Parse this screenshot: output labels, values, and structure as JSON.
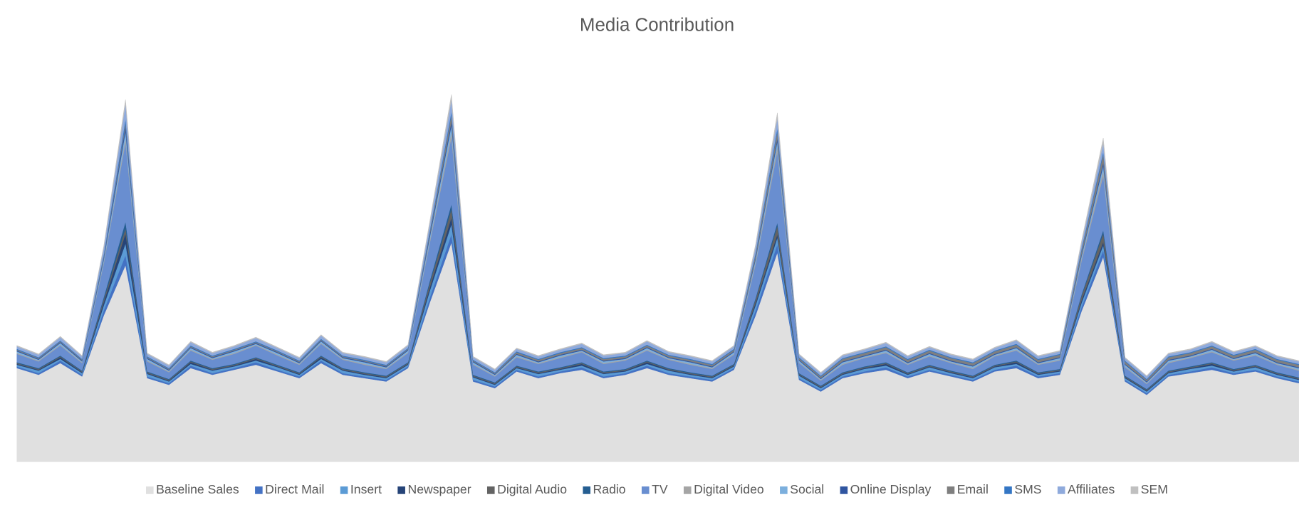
{
  "chart_data": {
    "type": "stacked_area",
    "title": "Media Contribution",
    "ylim": [
      0,
      440
    ],
    "legend": "bottom",
    "series": [
      {
        "name": "Baseline Sales",
        "color": "#e0e0e0",
        "values": [
          112,
          104,
          118,
          102,
          175,
          235,
          100,
          92,
          112,
          104,
          110,
          116,
          108,
          100,
          118,
          104,
          100,
          96,
          112,
          190,
          262,
          96,
          88,
          108,
          100,
          106,
          110,
          100,
          104,
          112,
          104,
          100,
          96,
          110,
          175,
          250,
          98,
          84,
          100,
          106,
          110,
          100,
          108,
          102,
          96,
          108,
          112,
          100,
          104,
          180,
          245,
          96,
          80,
          102,
          106,
          110,
          104,
          108,
          100,
          94
        ]
      },
      {
        "name": "Direct Mail",
        "color": "#4472c4",
        "values": [
          2,
          2,
          3,
          2,
          6,
          12,
          2,
          2,
          3,
          2,
          2,
          3,
          2,
          2,
          3,
          2,
          2,
          2,
          2,
          6,
          10,
          2,
          2,
          2,
          2,
          2,
          3,
          2,
          2,
          3,
          2,
          2,
          2,
          2,
          6,
          10,
          2,
          2,
          2,
          2,
          3,
          2,
          2,
          2,
          2,
          2,
          3,
          2,
          2,
          5,
          8,
          2,
          2,
          2,
          2,
          3,
          2,
          2,
          2,
          2
        ]
      },
      {
        "name": "Insert",
        "color": "#5b9bd5",
        "values": [
          2,
          3,
          2,
          2,
          6,
          14,
          3,
          2,
          2,
          3,
          2,
          2,
          3,
          2,
          2,
          3,
          2,
          2,
          2,
          8,
          12,
          3,
          2,
          2,
          3,
          2,
          2,
          3,
          2,
          2,
          3,
          2,
          2,
          2,
          6,
          8,
          3,
          2,
          2,
          3,
          2,
          2,
          3,
          2,
          2,
          3,
          2,
          2,
          2,
          5,
          6,
          2,
          2,
          2,
          3,
          2,
          2,
          3,
          2,
          2
        ]
      },
      {
        "name": "Newspaper",
        "color": "#264478",
        "values": [
          1,
          1,
          2,
          1,
          4,
          12,
          1,
          1,
          2,
          1,
          1,
          2,
          1,
          1,
          2,
          1,
          1,
          1,
          1,
          4,
          8,
          1,
          1,
          1,
          1,
          1,
          2,
          1,
          1,
          2,
          1,
          1,
          1,
          1,
          3,
          4,
          1,
          1,
          1,
          1,
          2,
          1,
          1,
          1,
          1,
          1,
          2,
          1,
          1,
          3,
          4,
          1,
          1,
          1,
          1,
          2,
          1,
          1,
          1,
          1
        ]
      },
      {
        "name": "Digital Audio",
        "color": "#636363",
        "values": [
          1,
          1,
          1,
          1,
          3,
          6,
          1,
          1,
          1,
          1,
          1,
          1,
          1,
          1,
          1,
          1,
          1,
          1,
          1,
          5,
          10,
          1,
          1,
          1,
          1,
          1,
          1,
          1,
          1,
          1,
          1,
          1,
          1,
          1,
          4,
          10,
          1,
          1,
          1,
          1,
          1,
          1,
          1,
          1,
          1,
          1,
          1,
          1,
          1,
          5,
          10,
          1,
          1,
          1,
          1,
          1,
          1,
          1,
          1,
          1
        ]
      },
      {
        "name": "Radio",
        "color": "#255e91",
        "values": [
          1,
          1,
          1,
          1,
          3,
          8,
          1,
          1,
          1,
          1,
          1,
          1,
          1,
          1,
          1,
          1,
          1,
          1,
          1,
          3,
          6,
          1,
          1,
          1,
          1,
          1,
          1,
          1,
          1,
          1,
          1,
          1,
          1,
          1,
          2,
          4,
          1,
          1,
          1,
          1,
          1,
          1,
          1,
          1,
          1,
          1,
          1,
          1,
          1,
          2,
          4,
          1,
          1,
          1,
          1,
          1,
          1,
          1,
          1,
          1
        ]
      },
      {
        "name": "TV",
        "color": "#698ed0",
        "values": [
          10,
          8,
          12,
          9,
          40,
          95,
          12,
          8,
          12,
          10,
          12,
          14,
          11,
          9,
          14,
          10,
          9,
          8,
          11,
          45,
          80,
          12,
          7,
          10,
          9,
          11,
          12,
          9,
          10,
          12,
          10,
          9,
          8,
          11,
          40,
          85,
          12,
          6,
          9,
          10,
          11,
          9,
          10,
          9,
          8,
          10,
          12,
          9,
          10,
          40,
          65,
          10,
          6,
          9,
          10,
          12,
          10,
          11,
          9,
          8
        ]
      },
      {
        "name": "Digital Video",
        "color": "#a5a5a5",
        "values": [
          1,
          1,
          1,
          1,
          2,
          5,
          1,
          1,
          1,
          1,
          1,
          1,
          1,
          1,
          1,
          1,
          1,
          1,
          1,
          3,
          6,
          1,
          1,
          1,
          1,
          1,
          1,
          1,
          1,
          1,
          1,
          1,
          1,
          1,
          3,
          6,
          1,
          1,
          1,
          1,
          1,
          1,
          1,
          1,
          1,
          1,
          1,
          1,
          1,
          3,
          6,
          1,
          1,
          1,
          1,
          1,
          1,
          1,
          1,
          1
        ]
      },
      {
        "name": "Social",
        "color": "#7cafdd",
        "values": [
          2,
          1,
          2,
          1,
          3,
          8,
          2,
          1,
          2,
          1,
          2,
          1,
          2,
          1,
          2,
          1,
          2,
          1,
          2,
          4,
          8,
          2,
          1,
          2,
          1,
          2,
          1,
          2,
          1,
          2,
          1,
          2,
          1,
          2,
          3,
          6,
          2,
          1,
          2,
          1,
          2,
          1,
          2,
          1,
          2,
          1,
          2,
          1,
          2,
          3,
          6,
          2,
          1,
          2,
          1,
          2,
          1,
          2,
          1,
          2
        ]
      },
      {
        "name": "Online Display",
        "color": "#2f55a0",
        "values": [
          1,
          1,
          1,
          1,
          2,
          6,
          1,
          1,
          1,
          1,
          1,
          1,
          1,
          1,
          1,
          1,
          1,
          1,
          1,
          3,
          5,
          1,
          1,
          1,
          1,
          1,
          1,
          1,
          1,
          1,
          1,
          1,
          1,
          1,
          2,
          4,
          1,
          1,
          1,
          1,
          1,
          1,
          1,
          1,
          1,
          1,
          1,
          1,
          1,
          2,
          4,
          1,
          1,
          1,
          1,
          1,
          1,
          1,
          1,
          1
        ]
      },
      {
        "name": "Email",
        "color": "#7f7f7f",
        "values": [
          1,
          1,
          1,
          1,
          2,
          4,
          1,
          1,
          1,
          1,
          1,
          1,
          1,
          1,
          1,
          1,
          1,
          1,
          1,
          3,
          8,
          1,
          1,
          2,
          2,
          2,
          2,
          2,
          2,
          2,
          2,
          2,
          2,
          2,
          4,
          8,
          2,
          2,
          3,
          3,
          3,
          3,
          3,
          3,
          3,
          3,
          3,
          3,
          3,
          5,
          10,
          3,
          2,
          3,
          3,
          3,
          3,
          3,
          3,
          3
        ]
      },
      {
        "name": "SMS",
        "color": "#3476c4",
        "values": [
          1,
          1,
          1,
          1,
          2,
          5,
          1,
          1,
          1,
          1,
          1,
          1,
          1,
          1,
          1,
          1,
          1,
          1,
          1,
          2,
          4,
          1,
          1,
          1,
          1,
          1,
          1,
          1,
          1,
          1,
          1,
          1,
          1,
          1,
          2,
          4,
          1,
          1,
          1,
          1,
          1,
          1,
          1,
          1,
          1,
          1,
          1,
          1,
          1,
          2,
          3,
          1,
          1,
          1,
          1,
          1,
          1,
          1,
          1,
          1
        ]
      },
      {
        "name": "Affiliates",
        "color": "#8faadc",
        "values": [
          3,
          3,
          4,
          3,
          8,
          18,
          3,
          3,
          4,
          3,
          3,
          4,
          3,
          3,
          4,
          3,
          3,
          3,
          3,
          8,
          14,
          3,
          3,
          3,
          3,
          3,
          4,
          3,
          3,
          4,
          3,
          3,
          3,
          3,
          7,
          12,
          3,
          3,
          3,
          3,
          4,
          3,
          3,
          3,
          3,
          3,
          4,
          3,
          3,
          6,
          10,
          3,
          3,
          3,
          3,
          4,
          3,
          3,
          3,
          3
        ]
      },
      {
        "name": "SEM",
        "color": "#c0c0c0",
        "values": [
          1,
          1,
          1,
          1,
          2,
          5,
          1,
          1,
          1,
          1,
          1,
          1,
          1,
          1,
          1,
          1,
          1,
          1,
          1,
          3,
          6,
          1,
          1,
          1,
          1,
          1,
          1,
          1,
          1,
          1,
          1,
          1,
          1,
          1,
          3,
          6,
          1,
          1,
          1,
          1,
          1,
          1,
          1,
          1,
          1,
          1,
          1,
          1,
          1,
          3,
          6,
          1,
          1,
          1,
          1,
          1,
          1,
          1,
          1,
          1
        ]
      }
    ]
  }
}
